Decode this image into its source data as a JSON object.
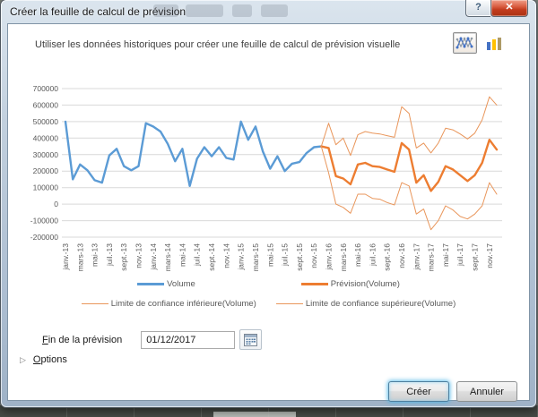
{
  "window": {
    "title": "Créer la feuille de calcul de prévision",
    "help_glyph": "?",
    "close_glyph": "✕"
  },
  "dialog": {
    "description": "Utiliser les données historiques pour créer une feuille de calcul de prévision visuelle",
    "chart_type": {
      "line_selected": true,
      "bar_selected": false
    },
    "forecast_end": {
      "label_accel": "F",
      "label_rest": "in de la prévision",
      "value": "01/12/2017"
    },
    "options": {
      "expander_glyph": "▷",
      "label_accel": "O",
      "label_rest": "ptions"
    },
    "buttons": {
      "create": "Créer",
      "cancel": "Annuler"
    }
  },
  "chart_data": {
    "type": "line",
    "n_points": 60,
    "x_range_note": "monthly Jan-2013 through Dec-2017, labels every 2 months",
    "x_labels_shown": [
      "janv.-13",
      "mars-13",
      "mai-13",
      "juil.-13",
      "sept.-13",
      "nov.-13",
      "janv.-14",
      "mars-14",
      "mai-14",
      "juil.-14",
      "sept.-14",
      "nov.-14",
      "janv.-15",
      "mars-15",
      "mai-15",
      "juil.-15",
      "sept.-15",
      "nov.-15",
      "janv.-16",
      "mars-16",
      "mai-16",
      "juil.-16",
      "sept.-16",
      "nov.-16",
      "janv.-17",
      "mars-17",
      "mai-17",
      "juil.-17",
      "sept.-17",
      "nov.-17"
    ],
    "ylim": [
      -200000,
      700000
    ],
    "y_ticks": [
      700000,
      600000,
      500000,
      400000,
      300000,
      200000,
      100000,
      0,
      -100000,
      -200000
    ],
    "gridline_color": "#D9D9D9",
    "legend_position": "bottom",
    "series": [
      {
        "name": "Volume",
        "color": "#5B9BD5",
        "width": 2.4,
        "start_index": 0,
        "values": [
          500000,
          150000,
          240000,
          205000,
          145000,
          130000,
          295000,
          335000,
          230000,
          205000,
          230000,
          490000,
          470000,
          440000,
          365000,
          260000,
          335000,
          110000,
          275000,
          345000,
          290000,
          345000,
          280000,
          270000,
          500000,
          390000,
          470000,
          320000,
          215000,
          290000,
          200000,
          245000,
          255000,
          310000,
          345000,
          350000
        ]
      },
      {
        "name": "Prévision(Volume)",
        "color": "#ED7D31",
        "width": 2.4,
        "start_index": 35,
        "values": [
          350000,
          340000,
          170000,
          155000,
          120000,
          240000,
          250000,
          230000,
          225000,
          210000,
          196000,
          370000,
          330000,
          130000,
          175000,
          80000,
          135000,
          230000,
          210000,
          175000,
          140000,
          175000,
          250000,
          390000,
          330000
        ]
      },
      {
        "name": "Limite de confiance inférieure(Volume)",
        "color": "#E9965B",
        "width": 1,
        "start_index": 35,
        "values": [
          350000,
          190000,
          0,
          -20000,
          -55000,
          60000,
          60000,
          35000,
          30000,
          10000,
          -5000,
          130000,
          110000,
          -60000,
          -30000,
          -155000,
          -100000,
          -10000,
          -35000,
          -75000,
          -90000,
          -60000,
          -10000,
          130000,
          60000
        ]
      },
      {
        "name": "Limite de confiance supérieure(Volume)",
        "color": "#E9965B",
        "width": 1,
        "start_index": 35,
        "values": [
          350000,
          490000,
          360000,
          400000,
          295000,
          420000,
          440000,
          430000,
          425000,
          415000,
          405000,
          590000,
          550000,
          340000,
          370000,
          310000,
          370000,
          460000,
          450000,
          425000,
          395000,
          430000,
          510000,
          650000,
          600000
        ]
      }
    ]
  }
}
